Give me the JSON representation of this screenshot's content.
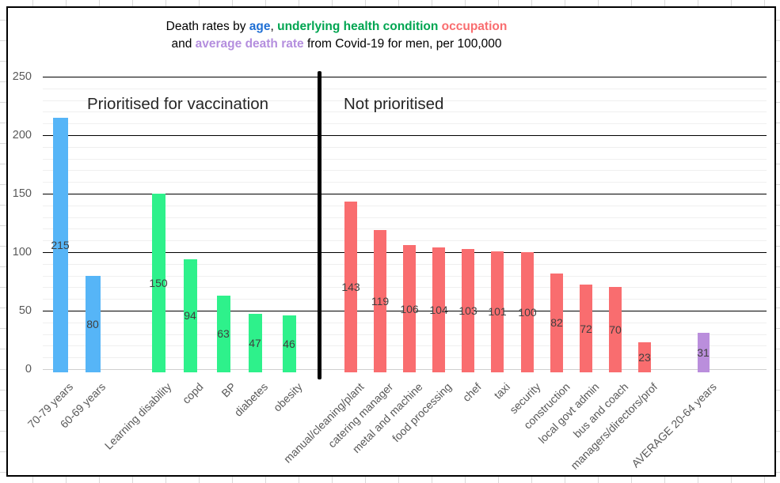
{
  "chart_data": {
    "type": "bar",
    "title_text": "Death rates by age, underlying health condition occupation and average death rate from Covid-19 for men, per 100,000",
    "title_lines": [
      {
        "segments": [
          {
            "text": "Death rates by ",
            "color": "#000000",
            "bold": false
          },
          {
            "text": "age",
            "color": "#1f6fd4",
            "bold": true
          },
          {
            "text": ", ",
            "color": "#000000",
            "bold": false
          },
          {
            "text": "underlying health condition",
            "color": "#00a551",
            "bold": true
          },
          {
            "text": " ",
            "color": "#000000",
            "bold": false
          },
          {
            "text": "occupation",
            "color": "#f96d6f",
            "bold": true
          }
        ]
      },
      {
        "segments": [
          {
            "text": "and ",
            "color": "#000000",
            "bold": false
          },
          {
            "text": "average death rate",
            "color": "#b48ede",
            "bold": true
          },
          {
            "text": " from Covid-19 for men, per 100,000",
            "color": "#000000",
            "bold": false
          }
        ]
      }
    ],
    "annotations": [
      "Prioritised for vaccination",
      "Not prioritised"
    ],
    "ylim": [
      0,
      250
    ],
    "ytick_values": [
      0,
      50,
      100,
      150,
      200,
      250
    ],
    "ytick_minor_step": 10,
    "grid": "horizontal major black, minor light gray",
    "legend_position": "none (color-coded in title)",
    "groups": [
      {
        "name": "age",
        "color": "#56b5f7",
        "bars": [
          {
            "label": "70-79 years",
            "value": 215
          },
          {
            "label": "60-69 years",
            "value": 80
          }
        ]
      },
      {
        "name": "underlying health condition",
        "color": "#2ef18b",
        "bars": [
          {
            "label": "Learning disability",
            "value": 150
          },
          {
            "label": "copd",
            "value": 94
          },
          {
            "label": "BP",
            "value": 63
          },
          {
            "label": "diabetes",
            "value": 47
          },
          {
            "label": "obesity",
            "value": 46
          }
        ]
      },
      {
        "name": "occupation",
        "color": "#f96d6f",
        "bars": [
          {
            "label": "manual/cleaning/plant",
            "value": 143
          },
          {
            "label": "catering manager",
            "value": 119
          },
          {
            "label": "metal and machine",
            "value": 106
          },
          {
            "label": "food processing",
            "value": 104
          },
          {
            "label": "chef",
            "value": 103
          },
          {
            "label": "taxi",
            "value": 101
          },
          {
            "label": "security",
            "value": 100
          },
          {
            "label": "construction",
            "value": 82
          },
          {
            "label": "local govt admin",
            "value": 72
          },
          {
            "label": "bus and coach",
            "value": 70
          },
          {
            "label": "managers/directors/prof",
            "value": 23
          }
        ]
      },
      {
        "name": "average death rate",
        "color": "#ba8edc",
        "bars": [
          {
            "label": "AVERAGE 20-64 years",
            "value": 31
          }
        ]
      }
    ]
  }
}
